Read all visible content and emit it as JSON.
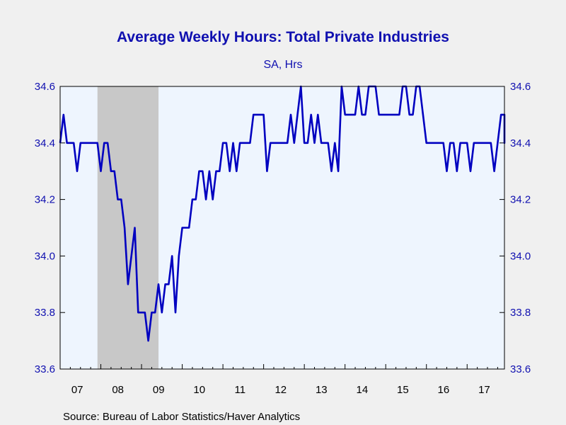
{
  "chart_data": {
    "type": "line",
    "title": "Average Weekly Hours: Total Private Industries",
    "subtitle": "SA, Hrs",
    "source": "Source:  Bureau of Labor Statistics/Haver Analytics",
    "x_tick_labels": [
      "07",
      "08",
      "09",
      "10",
      "11",
      "12",
      "13",
      "14",
      "15",
      "16",
      "17"
    ],
    "xlim": [
      2007.0,
      2017.917
    ],
    "ylim": [
      33.6,
      34.6
    ],
    "y_ticks": [
      "34.6",
      "34.4",
      "34.2",
      "34.0",
      "33.8",
      "33.6"
    ],
    "y_tick_values": [
      34.6,
      34.4,
      34.2,
      34.0,
      33.8,
      33.6
    ],
    "grid": false,
    "recession_shading": [
      {
        "start": 2007.917,
        "end": 2009.417
      }
    ],
    "colors": {
      "line": "#0000c0",
      "plot_bg": "#eef5fe",
      "recession": "#c8c8c8",
      "axis_text": "#1010b0"
    },
    "series": [
      {
        "start": 2007.0,
        "step": 0.08333,
        "values": [
          34.4,
          34.5,
          34.4,
          34.4,
          34.4,
          34.3,
          34.4,
          34.4,
          34.4,
          34.4,
          34.4,
          34.4,
          34.3,
          34.4,
          34.4,
          34.3,
          34.3,
          34.2,
          34.2,
          34.1,
          33.9,
          34.0,
          34.1,
          33.8,
          33.8,
          33.8,
          33.7,
          33.8,
          33.8,
          33.9,
          33.8,
          33.9,
          33.9,
          34.0,
          33.8,
          34.0,
          34.1,
          34.1,
          34.1,
          34.2,
          34.2,
          34.3,
          34.3,
          34.2,
          34.3,
          34.2,
          34.3,
          34.3,
          34.4,
          34.4,
          34.3,
          34.4,
          34.3,
          34.4,
          34.4,
          34.4,
          34.4,
          34.5,
          34.5,
          34.5,
          34.5,
          34.3,
          34.4,
          34.4,
          34.4,
          34.4,
          34.4,
          34.4,
          34.5,
          34.4,
          34.5,
          34.6,
          34.4,
          34.4,
          34.5,
          34.4,
          34.5,
          34.4,
          34.4,
          34.4,
          34.3,
          34.4,
          34.3,
          34.6,
          34.5,
          34.5,
          34.5,
          34.5,
          34.6,
          34.5,
          34.5,
          34.6,
          34.6,
          34.6,
          34.5,
          34.5,
          34.5,
          34.5,
          34.5,
          34.5,
          34.5,
          34.6,
          34.6,
          34.5,
          34.5,
          34.6,
          34.6,
          34.5,
          34.4,
          34.4,
          34.4,
          34.4,
          34.4,
          34.4,
          34.3,
          34.4,
          34.4,
          34.3,
          34.4,
          34.4,
          34.4,
          34.3,
          34.4,
          34.4,
          34.4,
          34.4,
          34.4,
          34.4,
          34.3,
          34.4,
          34.5,
          34.5,
          34.4,
          34.5,
          34.5,
          34.5
        ]
      }
    ]
  }
}
